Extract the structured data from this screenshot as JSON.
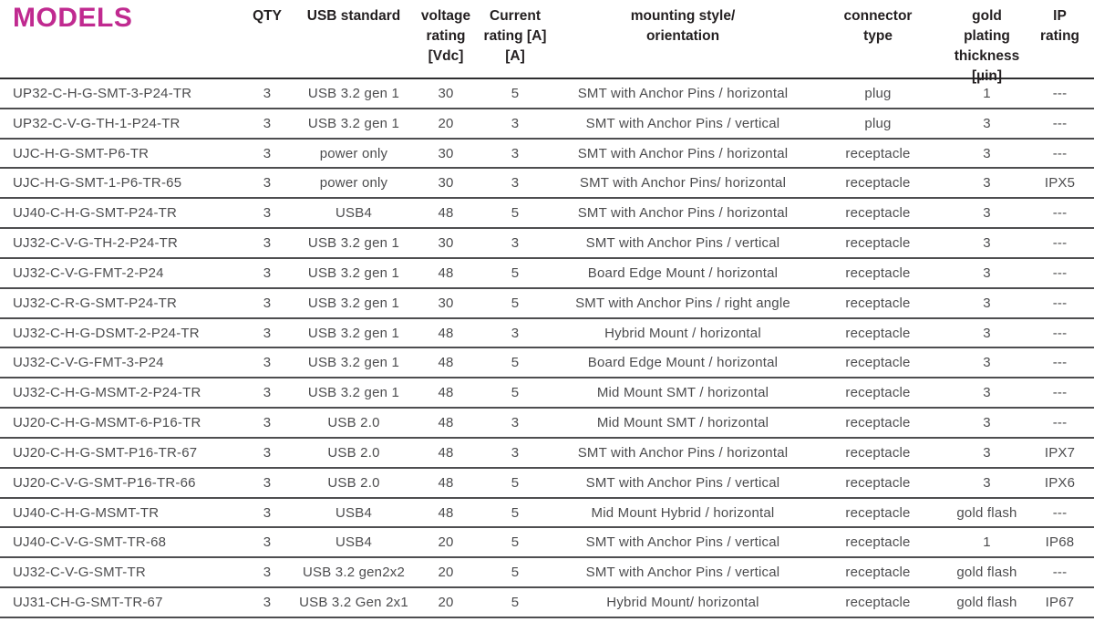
{
  "theme": {
    "accent": "#c02a90",
    "header_text": "#231f20",
    "body_text": "#4c4c4e",
    "rule_color": "#4e4e50"
  },
  "table": {
    "title": "MODELS",
    "columns": [
      {
        "key": "model",
        "label": ""
      },
      {
        "key": "qty",
        "label": "QTY"
      },
      {
        "key": "usb_standard",
        "label": "USB standard"
      },
      {
        "key": "voltage_rating",
        "label": "voltage\nrating\n[Vdc]"
      },
      {
        "key": "current_rating",
        "label": "Current\nrating [A]\n[A]"
      },
      {
        "key": "mounting_style",
        "label": "mounting style/\norientation"
      },
      {
        "key": "connector_type",
        "label": "connector\ntype"
      },
      {
        "key": "gold_plating",
        "label": "gold plating\nthickness\n[µin]"
      },
      {
        "key": "ip_rating",
        "label": "IP\nrating"
      }
    ],
    "rows": [
      [
        "UP32-C-H-G-SMT-3-P24-TR",
        "3",
        "USB 3.2 gen 1",
        "30",
        "5",
        "SMT with Anchor Pins / horizontal",
        "plug",
        "1",
        "---"
      ],
      [
        "UP32-C-V-G-TH-1-P24-TR",
        "3",
        "USB 3.2 gen 1",
        "20",
        "3",
        "SMT with Anchor Pins / vertical",
        "plug",
        "3",
        "---"
      ],
      [
        "UJC-H-G-SMT-P6-TR",
        "3",
        "power only",
        "30",
        "3",
        "SMT with Anchor Pins / horizontal",
        "receptacle",
        "3",
        "---"
      ],
      [
        "UJC-H-G-SMT-1-P6-TR-65",
        "3",
        "power only",
        "30",
        "3",
        "SMT with Anchor Pins/ horizontal",
        "receptacle",
        "3",
        "IPX5"
      ],
      [
        "UJ40-C-H-G-SMT-P24-TR",
        "3",
        "USB4",
        "48",
        "5",
        "SMT with Anchor Pins / horizontal",
        "receptacle",
        "3",
        "---"
      ],
      [
        "UJ32-C-V-G-TH-2-P24-TR",
        "3",
        "USB 3.2 gen 1",
        "30",
        "3",
        "SMT with Anchor Pins / vertical",
        "receptacle",
        "3",
        "---"
      ],
      [
        "UJ32-C-V-G-FMT-2-P24",
        "3",
        "USB 3.2 gen 1",
        "48",
        "5",
        "Board Edge Mount / horizontal",
        "receptacle",
        "3",
        "---"
      ],
      [
        "UJ32-C-R-G-SMT-P24-TR",
        "3",
        "USB 3.2 gen 1",
        "30",
        "5",
        "SMT with Anchor Pins / right angle",
        "receptacle",
        "3",
        "---"
      ],
      [
        "UJ32-C-H-G-DSMT-2-P24-TR",
        "3",
        "USB 3.2 gen 1",
        "48",
        "3",
        "Hybrid Mount / horizontal",
        "receptacle",
        "3",
        "---"
      ],
      [
        "UJ32-C-V-G-FMT-3-P24",
        "3",
        "USB 3.2 gen 1",
        "48",
        "5",
        "Board Edge Mount / horizontal",
        "receptacle",
        "3",
        "---"
      ],
      [
        "UJ32-C-H-G-MSMT-2-P24-TR",
        "3",
        "USB 3.2 gen 1",
        "48",
        "5",
        "Mid Mount SMT / horizontal",
        "receptacle",
        "3",
        "---"
      ],
      [
        "UJ20-C-H-G-MSMT-6-P16-TR",
        "3",
        "USB 2.0",
        "48",
        "3",
        "Mid Mount SMT / horizontal",
        "receptacle",
        "3",
        "---"
      ],
      [
        "UJ20-C-H-G-SMT-P16-TR-67",
        "3",
        "USB 2.0",
        "48",
        "3",
        "SMT with Anchor Pins / horizontal",
        "receptacle",
        "3",
        "IPX7"
      ],
      [
        "UJ20-C-V-G-SMT-P16-TR-66",
        "3",
        "USB 2.0",
        "48",
        "5",
        "SMT with Anchor Pins / vertical",
        "receptacle",
        "3",
        "IPX6"
      ],
      [
        "UJ40-C-H-G-MSMT-TR",
        "3",
        "USB4",
        "48",
        "5",
        "Mid Mount Hybrid / horizontal",
        "receptacle",
        "gold flash",
        "---"
      ],
      [
        "UJ40-C-V-G-SMT-TR-68",
        "3",
        "USB4",
        "20",
        "5",
        "SMT with Anchor Pins / vertical",
        "receptacle",
        "1",
        "IP68"
      ],
      [
        "UJ32-C-V-G-SMT-TR",
        "3",
        "USB 3.2 gen2x2",
        "20",
        "5",
        "SMT with Anchor Pins / vertical",
        "receptacle",
        "gold flash",
        "---"
      ],
      [
        "UJ31-CH-G-SMT-TR-67",
        "3",
        "USB 3.2 Gen 2x1",
        "20",
        "5",
        "Hybrid Mount/ horizontal",
        "receptacle",
        "gold flash",
        "IP67"
      ]
    ]
  }
}
